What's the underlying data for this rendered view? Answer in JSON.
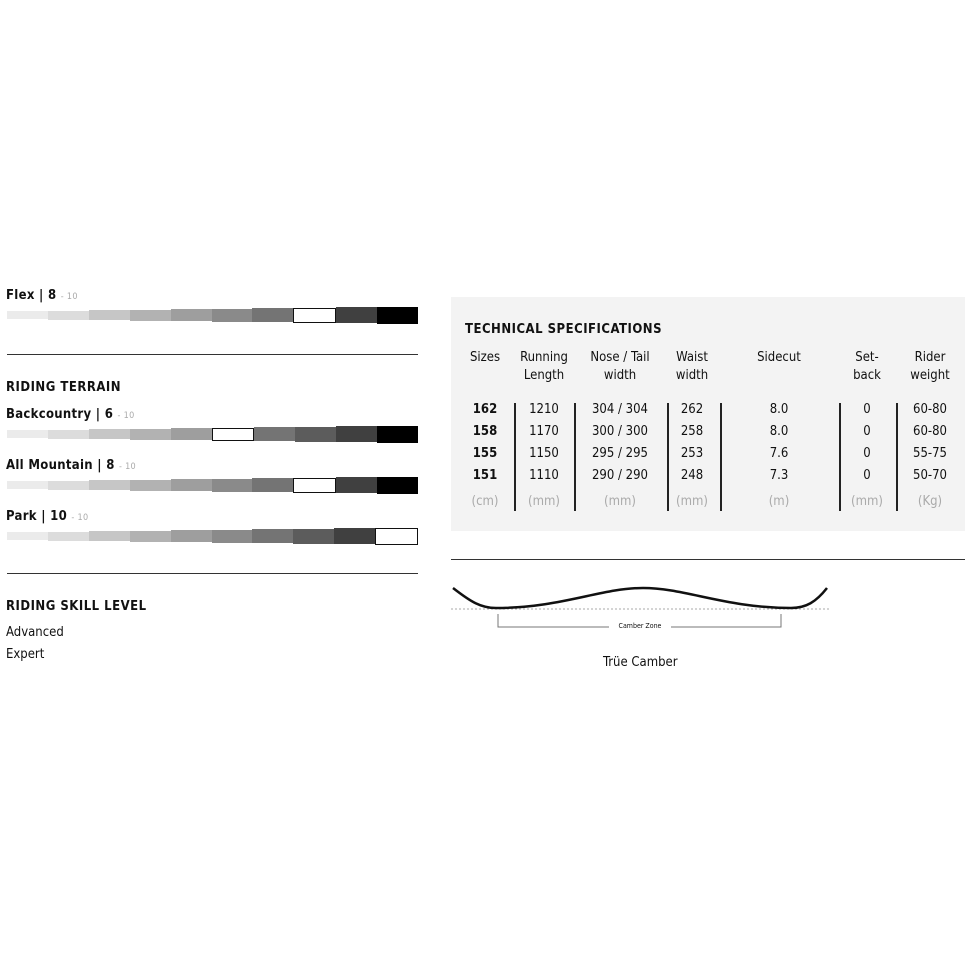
{
  "flex": {
    "label": "Flex | 8",
    "max": "- 10",
    "value": 8,
    "scale_max": 10
  },
  "terrain": {
    "title": "RIDING TERRAIN",
    "items": [
      {
        "label": "Backcountry | 6",
        "max": "- 10",
        "value": 6
      },
      {
        "label": "All Mountain | 8",
        "max": "- 10",
        "value": 8
      },
      {
        "label": "Park | 10",
        "max": "- 10",
        "value": 10
      }
    ]
  },
  "skill": {
    "title": "RIDING SKILL LEVEL",
    "levels": [
      "Advanced",
      "Expert"
    ]
  },
  "scale_colors": [
    "#ebebeb",
    "#dcdcdc",
    "#c6c6c6",
    "#b2b2b2",
    "#9e9e9e",
    "#8a8a8a",
    "#747474",
    "#5c5c5c",
    "#404040",
    "#000000"
  ],
  "specs": {
    "title": "TECHNICAL SPECIFICATIONS",
    "headers": [
      [
        "Sizes",
        ""
      ],
      [
        "Running",
        "Length"
      ],
      [
        "Nose / Tail",
        "width"
      ],
      [
        "Waist",
        "width"
      ],
      [
        "Sidecut",
        ""
      ],
      [
        "Set-",
        "back"
      ],
      [
        "Rider",
        "weight"
      ]
    ],
    "rows": [
      [
        "162",
        "1210",
        "304 / 304",
        "262",
        "8.0",
        "0",
        "60-80"
      ],
      [
        "158",
        "1170",
        "300 / 300",
        "258",
        "8.0",
        "0",
        "60-80"
      ],
      [
        "155",
        "1150",
        "295 / 295",
        "253",
        "7.6",
        "0",
        "55-75"
      ],
      [
        "151",
        "1110",
        "290 / 290",
        "248",
        "7.3",
        "0",
        "50-70"
      ]
    ],
    "units": [
      "(cm)",
      "(mm)",
      "(mm)",
      "(mm)",
      "(m)",
      "(mm)",
      "(Kg)"
    ]
  },
  "camber": {
    "zone_label": "Camber Zone",
    "profile_name": "Trüe Camber"
  }
}
